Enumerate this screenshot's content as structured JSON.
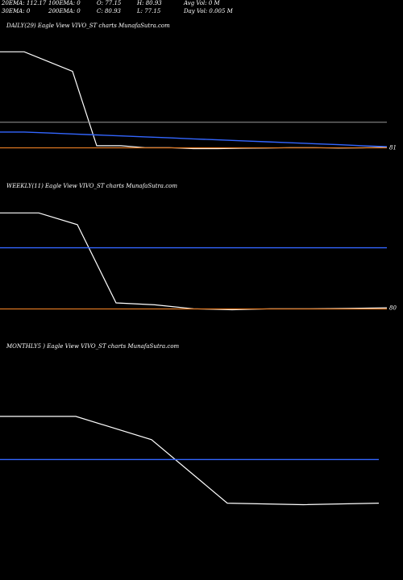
{
  "header": {
    "row1": [
      "20EMA: 112.17",
      "100EMA: 0",
      "O: 77.15",
      "H: 80.93",
      "Avg Vol: 0  M"
    ],
    "row2": [
      "30EMA: 0",
      "200EMA: 0",
      "C: 80.93",
      "L: 77.15",
      "Day Vol: 0.005 M"
    ]
  },
  "chart_data": [
    {
      "type": "line",
      "title": "DAILY(29) Eagle   View  VIVO_ST charts MunafaSutra.com",
      "price_label": "81",
      "colors": {
        "price": "#ffffff",
        "ema_blue": "#3366ff",
        "ema_gray": "#999999",
        "ema_orange": "#dd7722"
      },
      "ylim": [
        70,
        140
      ],
      "series": [
        {
          "values": [
            130,
            130,
            125,
            120,
            82,
            82,
            81,
            81,
            80.5,
            80.5,
            80.7,
            80.8,
            81,
            81,
            80.8,
            80.9,
            81.2
          ]
        },
        {
          "values": [
            89,
            89,
            88.5,
            88,
            87.5,
            87,
            86.5,
            86,
            85.5,
            85,
            84.5,
            84,
            83.5,
            83,
            82.5,
            82,
            81.5
          ]
        },
        {
          "values": [
            94,
            94,
            94,
            94,
            94,
            94,
            94,
            94,
            94,
            94,
            94,
            94,
            94,
            94,
            94,
            94,
            94
          ]
        },
        {
          "values": [
            80.93,
            80.93,
            80.93,
            80.93,
            80.93,
            80.93,
            80.93,
            80.93,
            80.93,
            80.93,
            80.93,
            80.93,
            80.93,
            80.93,
            80.93,
            80.93,
            80.93
          ]
        }
      ]
    },
    {
      "type": "line",
      "title": "WEEKLY(11) Eagle   View  VIVO_ST charts MunafaSutra.com",
      "price_label": "80",
      "colors": {
        "price": "#ffffff",
        "ema_blue": "#3366ff",
        "ema_orange": "#dd7722"
      },
      "ylim": [
        70,
        140
      ],
      "series": [
        {
          "values": [
            130,
            130,
            124,
            84,
            83,
            81,
            80.5,
            81,
            81,
            81.2,
            81.5
          ]
        },
        {
          "values": [
            112.17,
            112.17,
            112.17,
            112.17,
            112.17,
            112.17,
            112.17,
            112.17,
            112.17,
            112.17,
            112.17
          ]
        },
        {
          "values": [
            80.93,
            80.93,
            80.93,
            80.93,
            80.93,
            80.93,
            80.93,
            80.93,
            80.93,
            80.93,
            80.93
          ]
        }
      ]
    },
    {
      "type": "line",
      "title": "MONTHLY5                              ) Eagle   View  VIVO_ST charts MunafaSutra.com",
      "colors": {
        "price": "#ffffff",
        "ema_blue": "#3366ff"
      },
      "ylim": [
        50,
        180
      ],
      "series": [
        {
          "values": [
            140,
            140,
            125,
            84,
            83,
            84
          ]
        },
        {
          "values": [
            112.17,
            112.17,
            112.17,
            112.17,
            112.17,
            112.17
          ]
        }
      ]
    }
  ]
}
